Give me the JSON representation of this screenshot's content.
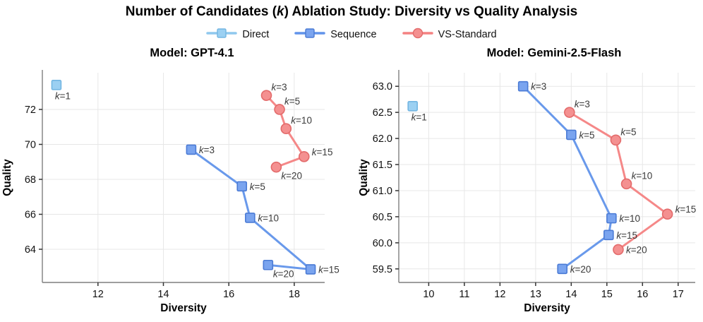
{
  "page": {
    "title_prefix": "Number of Candidates (",
    "title_italic": "k",
    "title_suffix": ") Ablation Study: Diversity vs Quality Analysis"
  },
  "legend": {
    "position": "top-center",
    "items": [
      {
        "label": "Direct",
        "marker": "square",
        "line_color": "#8FC8EE",
        "fill": "#9BD0F2",
        "edge": "#73B6E2"
      },
      {
        "label": "Sequence",
        "marker": "square",
        "line_color": "#6193EA",
        "fill": "#7AA4EF",
        "edge": "#4B7BD5"
      },
      {
        "label": "VS-Standard",
        "marker": "circle",
        "line_color": "#F48282",
        "fill": "#F49090",
        "edge": "#E36B6B"
      }
    ]
  },
  "chart_data": [
    {
      "type": "line",
      "title": "Model: GPT-4.1",
      "xlabel": "Diversity",
      "ylabel": "Quality",
      "xlim": [
        10.3,
        18.93
      ],
      "ylim": [
        62.1,
        74.1
      ],
      "grid": true,
      "xticks": [
        {
          "v": 12,
          "label": "12"
        },
        {
          "v": 14,
          "label": "14"
        },
        {
          "v": 16,
          "label": "16"
        },
        {
          "v": 18,
          "label": "18"
        }
      ],
      "yticks": [
        {
          "v": 64,
          "label": "64"
        },
        {
          "v": 66,
          "label": "66"
        },
        {
          "v": 68,
          "label": "68"
        },
        {
          "v": 70,
          "label": "70"
        },
        {
          "v": 72,
          "label": "72"
        }
      ],
      "series": [
        {
          "name": "Direct",
          "marker": "square",
          "line": false,
          "color": "#8FC8EE",
          "fill": "#9BD0F2",
          "edge": "#73B6E2",
          "points": [
            {
              "k": 1,
              "x": 10.73,
              "y": 73.4,
              "label_pos": "below"
            }
          ]
        },
        {
          "name": "Sequence",
          "marker": "square",
          "line": true,
          "color": "#6193EA",
          "fill": "#7AA4EF",
          "edge": "#4B7BD5",
          "points": [
            {
              "k": 3,
              "x": 14.85,
              "y": 69.7,
              "label_pos": "right"
            },
            {
              "k": 5,
              "x": 16.4,
              "y": 67.6,
              "label_pos": "right"
            },
            {
              "k": 10,
              "x": 16.65,
              "y": 65.8,
              "label_pos": "right"
            },
            {
              "k": 15,
              "x": 18.5,
              "y": 62.85,
              "label_pos": "right"
            },
            {
              "k": 20,
              "x": 17.2,
              "y": 63.1,
              "label_pos": "below-right"
            }
          ]
        },
        {
          "name": "VS-Standard",
          "marker": "circle",
          "line": true,
          "color": "#F48282",
          "fill": "#F49090",
          "edge": "#E36B6B",
          "points": [
            {
              "k": 3,
              "x": 17.15,
              "y": 72.8,
              "label_pos": "above-right"
            },
            {
              "k": 5,
              "x": 17.55,
              "y": 72.0,
              "label_pos": "above-right"
            },
            {
              "k": 10,
              "x": 17.75,
              "y": 70.9,
              "label_pos": "above-right"
            },
            {
              "k": 15,
              "x": 18.3,
              "y": 69.3,
              "label_pos": "right-up"
            },
            {
              "k": 20,
              "x": 17.45,
              "y": 68.7,
              "label_pos": "below-right"
            }
          ]
        }
      ]
    },
    {
      "type": "line",
      "title": "Model: Gemini-2.5-Flash",
      "xlabel": "Diversity",
      "ylabel": "Quality",
      "xlim": [
        9.16,
        17.48
      ],
      "ylim": [
        59.24,
        63.26
      ],
      "grid": true,
      "xticks": [
        {
          "v": 10,
          "label": "10"
        },
        {
          "v": 11,
          "label": "11"
        },
        {
          "v": 12,
          "label": "12"
        },
        {
          "v": 13,
          "label": "13"
        },
        {
          "v": 14,
          "label": "14"
        },
        {
          "v": 15,
          "label": "15"
        },
        {
          "v": 16,
          "label": "16"
        },
        {
          "v": 17,
          "label": "17"
        }
      ],
      "yticks": [
        {
          "v": 59.5,
          "label": "59.5"
        },
        {
          "v": 60.0,
          "label": "60.0"
        },
        {
          "v": 60.5,
          "label": "60.5"
        },
        {
          "v": 61.0,
          "label": "61.0"
        },
        {
          "v": 61.5,
          "label": "61.5"
        },
        {
          "v": 62.0,
          "label": "62.0"
        },
        {
          "v": 62.5,
          "label": "62.5"
        },
        {
          "v": 63.0,
          "label": "63.0"
        }
      ],
      "series": [
        {
          "name": "Direct",
          "marker": "square",
          "line": false,
          "color": "#8FC8EE",
          "fill": "#9BD0F2",
          "edge": "#73B6E2",
          "points": [
            {
              "k": 1,
              "x": 9.55,
              "y": 62.62,
              "label_pos": "below"
            }
          ]
        },
        {
          "name": "Sequence",
          "marker": "square",
          "line": true,
          "color": "#6193EA",
          "fill": "#7AA4EF",
          "edge": "#4B7BD5",
          "points": [
            {
              "k": 3,
              "x": 12.65,
              "y": 63.0,
              "label_pos": "right"
            },
            {
              "k": 5,
              "x": 14.0,
              "y": 62.07,
              "label_pos": "right"
            },
            {
              "k": 10,
              "x": 15.13,
              "y": 60.47,
              "label_pos": "right"
            },
            {
              "k": 15,
              "x": 15.05,
              "y": 60.15,
              "label_pos": "right"
            },
            {
              "k": 20,
              "x": 13.75,
              "y": 59.5,
              "label_pos": "right"
            }
          ]
        },
        {
          "name": "VS-Standard",
          "marker": "circle",
          "line": true,
          "color": "#F48282",
          "fill": "#F49090",
          "edge": "#E36B6B",
          "points": [
            {
              "k": 3,
              "x": 13.95,
              "y": 62.5,
              "label_pos": "above-right"
            },
            {
              "k": 5,
              "x": 15.25,
              "y": 61.97,
              "label_pos": "above-right"
            },
            {
              "k": 10,
              "x": 15.55,
              "y": 61.13,
              "label_pos": "above-right"
            },
            {
              "k": 15,
              "x": 16.7,
              "y": 60.55,
              "label_pos": "right-up"
            },
            {
              "k": 20,
              "x": 15.32,
              "y": 59.87,
              "label_pos": "right"
            }
          ]
        }
      ]
    }
  ]
}
